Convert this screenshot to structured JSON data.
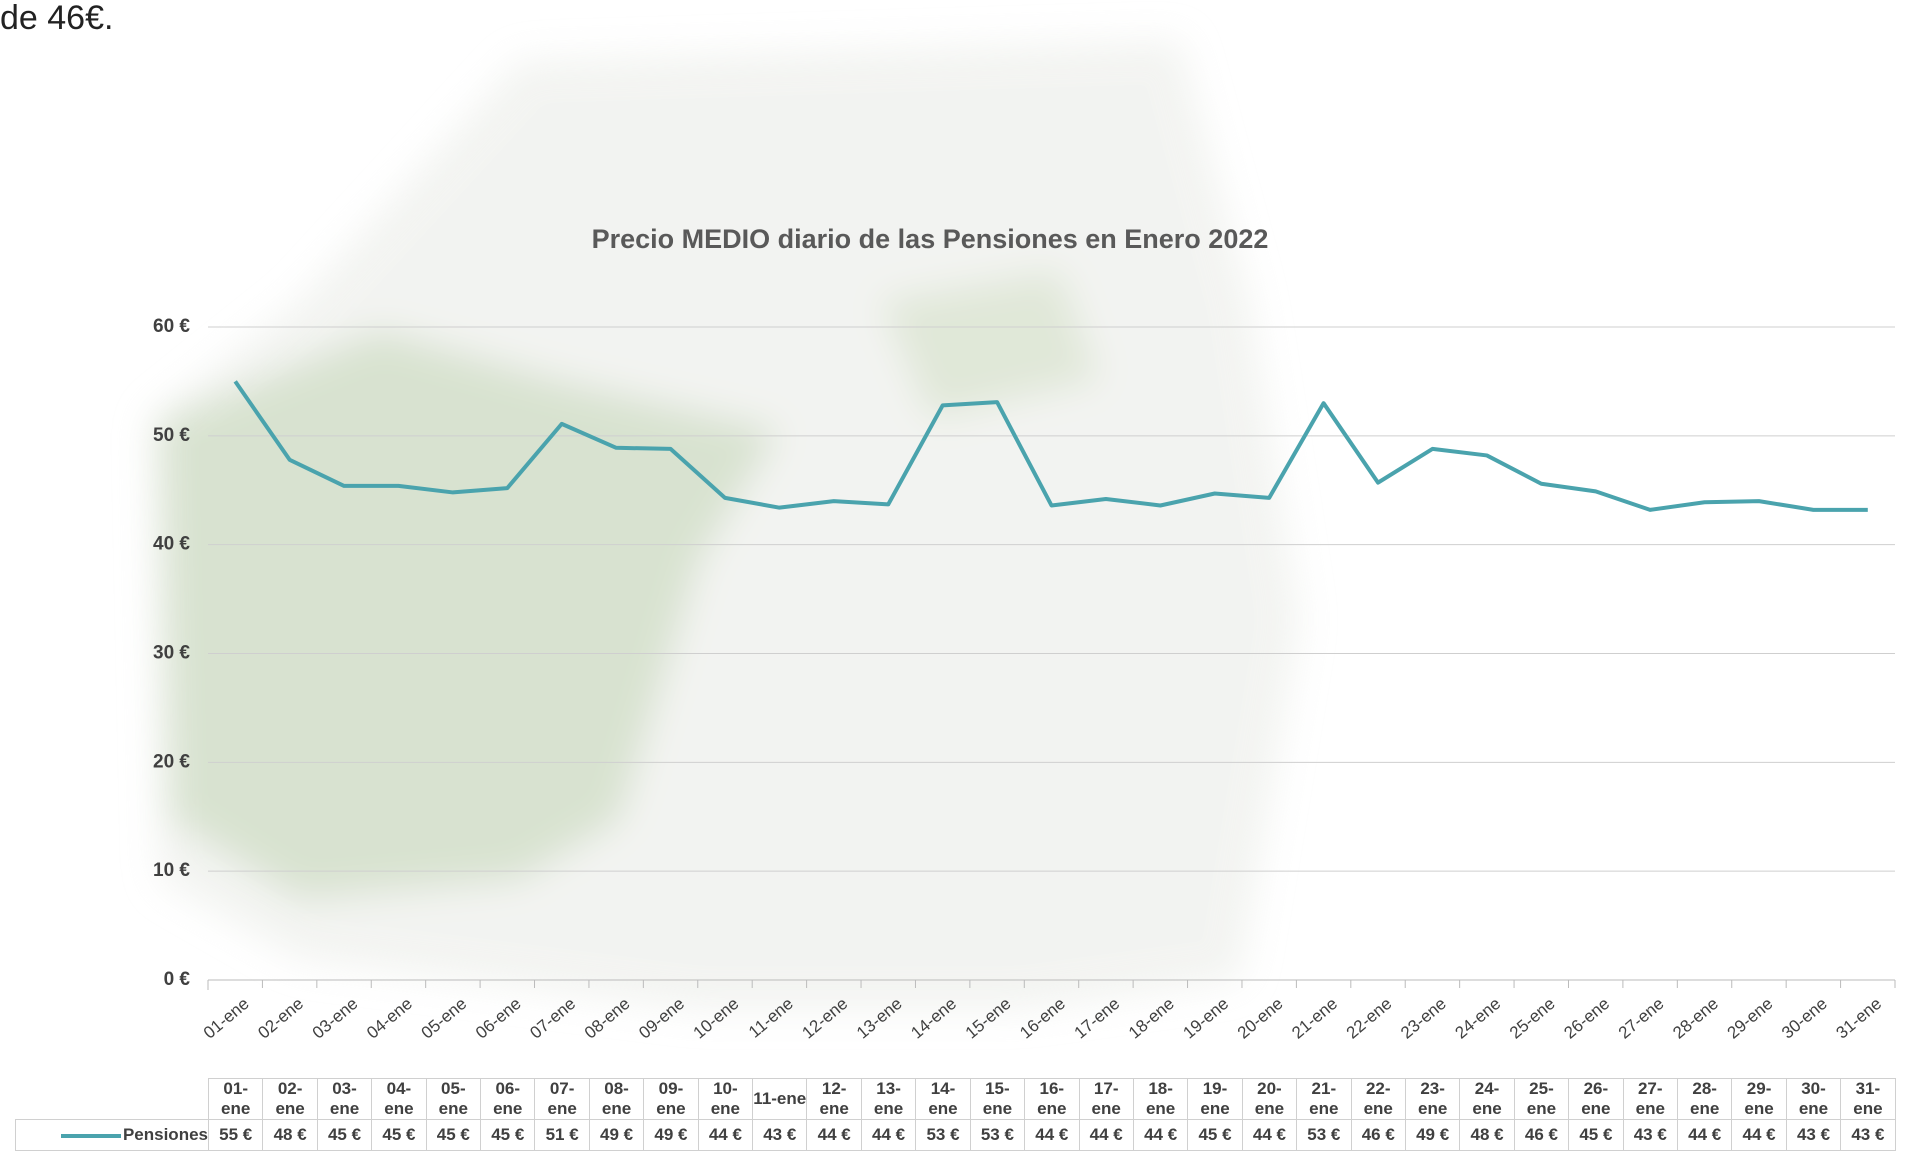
{
  "page_text": "de 46€.",
  "chart_data": {
    "type": "line",
    "title": "Precio MEDIO diario de las Pensiones en Enero 2022",
    "categories": [
      "01-ene",
      "02-ene",
      "03-ene",
      "04-ene",
      "05-ene",
      "06-ene",
      "07-ene",
      "08-ene",
      "09-ene",
      "10-ene",
      "11-ene",
      "12-ene",
      "13-ene",
      "14-ene",
      "15-ene",
      "16-ene",
      "17-ene",
      "18-ene",
      "19-ene",
      "20-ene",
      "21-ene",
      "22-ene",
      "23-ene",
      "24-ene",
      "25-ene",
      "26-ene",
      "27-ene",
      "28-ene",
      "29-ene",
      "30-ene",
      "31-ene"
    ],
    "series": [
      {
        "name": "Pensiones",
        "color": "#4aa3ad",
        "values": [
          55.0,
          47.8,
          45.4,
          45.4,
          44.8,
          45.2,
          51.1,
          48.9,
          48.8,
          44.3,
          43.4,
          44.0,
          43.7,
          52.8,
          53.1,
          43.6,
          44.2,
          43.6,
          44.7,
          44.3,
          53.0,
          45.7,
          48.8,
          48.2,
          45.6,
          44.9,
          43.2,
          43.9,
          44.0,
          43.2,
          43.2
        ],
        "value_labels": [
          "55 €",
          "48 €",
          "45 €",
          "45 €",
          "45 €",
          "45 €",
          "51 €",
          "49 €",
          "49 €",
          "44 €",
          "43 €",
          "44 €",
          "44 €",
          "53 €",
          "53 €",
          "44 €",
          "44 €",
          "44 €",
          "45 €",
          "44 €",
          "53 €",
          "46 €",
          "49 €",
          "48 €",
          "46 €",
          "45 €",
          "43 €",
          "44 €",
          "44 €",
          "43 €",
          "43 €"
        ]
      }
    ],
    "ylim": [
      0,
      60
    ],
    "yticks": [
      {
        "value": 0,
        "label": "0 €"
      },
      {
        "value": 10,
        "label": "10 €"
      },
      {
        "value": 20,
        "label": "20 €"
      },
      {
        "value": 30,
        "label": "30 €"
      },
      {
        "value": 40,
        "label": "40 €"
      },
      {
        "value": 50,
        "label": "50 €"
      },
      {
        "value": 60,
        "label": "60 €"
      }
    ],
    "grid": true
  }
}
